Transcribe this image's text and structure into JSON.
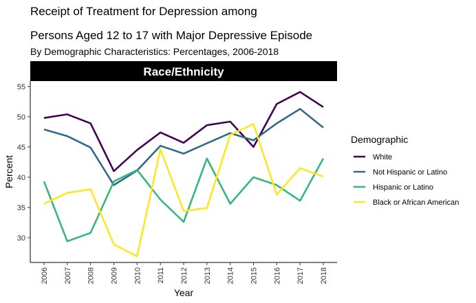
{
  "chart_data": {
    "type": "line",
    "title_line1": "Receipt of Treatment for Depression among",
    "title_line2": "Persons Aged 12 to 17 with Major Depressive Episode",
    "subtitle": "By Demographic Characteristics: Percentages, 2006-2018",
    "facet_label": "Race/Ethnicity",
    "xlabel": "Year",
    "ylabel": "Percent",
    "x": [
      2006,
      2007,
      2008,
      2009,
      2010,
      2011,
      2012,
      2013,
      2014,
      2015,
      2016,
      2017,
      2018
    ],
    "x_tick_labels": [
      "2006",
      "2007",
      "2008",
      "2009",
      "2010",
      "2011",
      "2012",
      "2013",
      "2014",
      "2015",
      "2016",
      "2017",
      "2018"
    ],
    "ylim": [
      25.9,
      55.9
    ],
    "y_ticks": [
      30,
      35,
      40,
      45,
      50,
      55
    ],
    "y_tick_labels": [
      "30",
      "35",
      "40",
      "45",
      "50",
      "55"
    ],
    "legend_title": "Demographic",
    "legend_position": "right",
    "grid": false,
    "series": [
      {
        "name": "White",
        "color": "#440154",
        "values": [
          49.8,
          50.4,
          48.9,
          41.0,
          44.5,
          47.4,
          45.7,
          48.6,
          49.2,
          45.0,
          52.1,
          54.1,
          51.6
        ]
      },
      {
        "name": "Not Hispanic or Latino",
        "color": "#31688e",
        "values": [
          47.9,
          46.8,
          44.9,
          38.7,
          41.1,
          45.2,
          43.9,
          45.6,
          47.3,
          46.1,
          48.9,
          51.3,
          48.2
        ]
      },
      {
        "name": "Hispanic or Latino",
        "color": "#35b779",
        "values": [
          39.3,
          29.4,
          30.8,
          39.3,
          41.2,
          36.3,
          32.6,
          43.1,
          35.6,
          40.0,
          38.7,
          36.1,
          43.1
        ]
      },
      {
        "name": "Black or African American",
        "color": "#fde725",
        "values": [
          35.6,
          37.4,
          38.0,
          28.9,
          26.9,
          44.6,
          34.4,
          34.9,
          47.0,
          48.8,
          37.1,
          41.5,
          40.1
        ]
      }
    ]
  }
}
